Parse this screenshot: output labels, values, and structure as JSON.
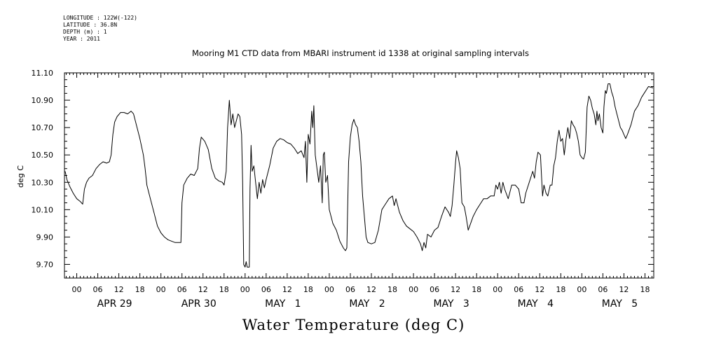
{
  "meta": {
    "longitude": "LONGITUDE : 122W(-122)",
    "latitude": "LATITUDE : 36.8N",
    "depth": "DEPTH (m) : 1",
    "year": "YEAR : 2011"
  },
  "chart_data": {
    "type": "line",
    "title": "Mooring M1 CTD data from MBARI instrument id 1338 at original sampling intervals",
    "ylabel": "deg C",
    "xlabel": "Water Temperature (deg C)",
    "ylim": [
      9.6,
      11.1
    ],
    "y_ticks": [
      "9.70",
      "9.90",
      "10.10",
      "10.30",
      "10.50",
      "10.70",
      "10.90",
      "11.10"
    ],
    "y_tick_values": [
      9.7,
      9.9,
      10.1,
      10.3,
      10.5,
      10.7,
      10.9,
      11.1
    ],
    "x_unit": "hours since APR 29 00",
    "xlim": [
      -3.5,
      164.5
    ],
    "x_hour_ticks": [
      {
        "h": 0,
        "label": "00"
      },
      {
        "h": 6,
        "label": "06"
      },
      {
        "h": 12,
        "label": "12"
      },
      {
        "h": 18,
        "label": "18"
      },
      {
        "h": 24,
        "label": "00"
      },
      {
        "h": 30,
        "label": "06"
      },
      {
        "h": 36,
        "label": "12"
      },
      {
        "h": 42,
        "label": "18"
      },
      {
        "h": 48,
        "label": "00"
      },
      {
        "h": 54,
        "label": "06"
      },
      {
        "h": 60,
        "label": "12"
      },
      {
        "h": 66,
        "label": "18"
      },
      {
        "h": 72,
        "label": "00"
      },
      {
        "h": 78,
        "label": "06"
      },
      {
        "h": 84,
        "label": "12"
      },
      {
        "h": 90,
        "label": "18"
      },
      {
        "h": 96,
        "label": "00"
      },
      {
        "h": 102,
        "label": "06"
      },
      {
        "h": 108,
        "label": "12"
      },
      {
        "h": 114,
        "label": "18"
      },
      {
        "h": 120,
        "label": "00"
      },
      {
        "h": 126,
        "label": "06"
      },
      {
        "h": 132,
        "label": "12"
      },
      {
        "h": 138,
        "label": "18"
      },
      {
        "h": 144,
        "label": "00"
      },
      {
        "h": 150,
        "label": "06"
      },
      {
        "h": 156,
        "label": "12"
      },
      {
        "h": 162,
        "label": "18"
      }
    ],
    "x_day_labels": [
      {
        "h": 12,
        "label": "APR 29"
      },
      {
        "h": 36,
        "label": "APR 30"
      },
      {
        "h": 60,
        "label": "MAY   1"
      },
      {
        "h": 84,
        "label": "MAY   2"
      },
      {
        "h": 108,
        "label": "MAY   3"
      },
      {
        "h": 132,
        "label": "MAY   4"
      },
      {
        "h": 156,
        "label": "MAY   5"
      }
    ],
    "series": [
      {
        "color": "#000000",
        "points": [
          [
            -3.3,
            10.38
          ],
          [
            -2.8,
            10.32
          ],
          [
            -2.0,
            10.27
          ],
          [
            -1.0,
            10.22
          ],
          [
            0.0,
            10.18
          ],
          [
            1.0,
            10.16
          ],
          [
            1.7,
            10.14
          ],
          [
            2.2,
            10.25
          ],
          [
            2.8,
            10.3
          ],
          [
            3.5,
            10.33
          ],
          [
            4.5,
            10.35
          ],
          [
            5.5,
            10.4
          ],
          [
            6.5,
            10.43
          ],
          [
            7.5,
            10.45
          ],
          [
            8.5,
            10.44
          ],
          [
            9.3,
            10.45
          ],
          [
            9.8,
            10.5
          ],
          [
            10.3,
            10.65
          ],
          [
            10.8,
            10.74
          ],
          [
            11.5,
            10.78
          ],
          [
            12.5,
            10.81
          ],
          [
            13.5,
            10.81
          ],
          [
            14.5,
            10.8
          ],
          [
            15.5,
            10.82
          ],
          [
            16.2,
            10.8
          ],
          [
            17.0,
            10.72
          ],
          [
            18.0,
            10.62
          ],
          [
            19.0,
            10.5
          ],
          [
            19.5,
            10.4
          ],
          [
            20.0,
            10.28
          ],
          [
            21.0,
            10.18
          ],
          [
            22.0,
            10.08
          ],
          [
            23.0,
            9.98
          ],
          [
            24.0,
            9.93
          ],
          [
            25.0,
            9.9
          ],
          [
            26.0,
            9.88
          ],
          [
            27.0,
            9.87
          ],
          [
            28.0,
            9.86
          ],
          [
            29.0,
            9.86
          ],
          [
            29.7,
            9.86
          ],
          [
            30.0,
            10.15
          ],
          [
            30.5,
            10.28
          ],
          [
            31.5,
            10.33
          ],
          [
            32.5,
            10.36
          ],
          [
            33.5,
            10.35
          ],
          [
            34.5,
            10.4
          ],
          [
            35.0,
            10.55
          ],
          [
            35.5,
            10.63
          ],
          [
            36.5,
            10.6
          ],
          [
            37.5,
            10.54
          ],
          [
            38.5,
            10.4
          ],
          [
            39.5,
            10.33
          ],
          [
            40.5,
            10.31
          ],
          [
            41.5,
            10.3
          ],
          [
            42.0,
            10.28
          ],
          [
            42.6,
            10.38
          ],
          [
            43.0,
            10.7
          ],
          [
            43.5,
            10.9
          ],
          [
            44.0,
            10.72
          ],
          [
            44.5,
            10.8
          ],
          [
            45.0,
            10.7
          ],
          [
            45.5,
            10.75
          ],
          [
            46.0,
            10.8
          ],
          [
            46.5,
            10.78
          ],
          [
            47.0,
            10.65
          ],
          [
            47.3,
            10.3
          ],
          [
            47.6,
            9.7
          ],
          [
            48.0,
            9.68
          ],
          [
            48.3,
            9.72
          ],
          [
            48.6,
            9.68
          ],
          [
            49.2,
            9.68
          ],
          [
            49.4,
            10.25
          ],
          [
            49.7,
            10.57
          ],
          [
            50.0,
            10.38
          ],
          [
            50.5,
            10.42
          ],
          [
            51.0,
            10.3
          ],
          [
            51.5,
            10.18
          ],
          [
            52.0,
            10.3
          ],
          [
            52.5,
            10.22
          ],
          [
            53.0,
            10.32
          ],
          [
            53.5,
            10.26
          ],
          [
            54.0,
            10.32
          ],
          [
            55.0,
            10.42
          ],
          [
            56.0,
            10.55
          ],
          [
            57.0,
            10.6
          ],
          [
            58.0,
            10.62
          ],
          [
            59.0,
            10.61
          ],
          [
            60.0,
            10.59
          ],
          [
            61.0,
            10.58
          ],
          [
            62.0,
            10.55
          ],
          [
            63.0,
            10.51
          ],
          [
            64.0,
            10.53
          ],
          [
            64.8,
            10.48
          ],
          [
            65.2,
            10.6
          ],
          [
            65.6,
            10.3
          ],
          [
            66.0,
            10.65
          ],
          [
            66.5,
            10.58
          ],
          [
            67.0,
            10.82
          ],
          [
            67.3,
            10.7
          ],
          [
            67.6,
            10.86
          ],
          [
            68.0,
            10.5
          ],
          [
            68.5,
            10.4
          ],
          [
            69.0,
            10.3
          ],
          [
            69.5,
            10.42
          ],
          [
            70.0,
            10.15
          ],
          [
            70.3,
            10.5
          ],
          [
            70.6,
            10.52
          ],
          [
            71.0,
            10.3
          ],
          [
            71.5,
            10.35
          ],
          [
            72.0,
            10.1
          ],
          [
            72.5,
            10.05
          ],
          [
            73.0,
            10.0
          ],
          [
            74.0,
            9.95
          ],
          [
            75.0,
            9.87
          ],
          [
            76.0,
            9.82
          ],
          [
            76.6,
            9.8
          ],
          [
            77.0,
            9.82
          ],
          [
            77.5,
            10.45
          ],
          [
            78.0,
            10.63
          ],
          [
            78.5,
            10.72
          ],
          [
            79.0,
            10.76
          ],
          [
            79.5,
            10.72
          ],
          [
            80.0,
            10.7
          ],
          [
            80.5,
            10.6
          ],
          [
            81.0,
            10.45
          ],
          [
            81.5,
            10.2
          ],
          [
            82.0,
            10.05
          ],
          [
            82.5,
            9.9
          ],
          [
            83.0,
            9.86
          ],
          [
            84.0,
            9.85
          ],
          [
            85.0,
            9.86
          ],
          [
            86.0,
            9.95
          ],
          [
            87.0,
            10.1
          ],
          [
            88.0,
            10.14
          ],
          [
            89.0,
            10.18
          ],
          [
            90.0,
            10.2
          ],
          [
            90.5,
            10.13
          ],
          [
            91.0,
            10.18
          ],
          [
            92.0,
            10.08
          ],
          [
            93.0,
            10.02
          ],
          [
            94.0,
            9.98
          ],
          [
            95.0,
            9.96
          ],
          [
            96.0,
            9.94
          ],
          [
            97.0,
            9.9
          ],
          [
            98.0,
            9.85
          ],
          [
            98.5,
            9.8
          ],
          [
            99.0,
            9.86
          ],
          [
            99.5,
            9.82
          ],
          [
            100.0,
            9.92
          ],
          [
            101.0,
            9.9
          ],
          [
            102.0,
            9.95
          ],
          [
            103.0,
            9.97
          ],
          [
            104.0,
            10.05
          ],
          [
            105.0,
            10.12
          ],
          [
            106.0,
            10.08
          ],
          [
            106.5,
            10.05
          ],
          [
            107.0,
            10.13
          ],
          [
            107.5,
            10.28
          ],
          [
            108.0,
            10.45
          ],
          [
            108.3,
            10.53
          ],
          [
            108.8,
            10.48
          ],
          [
            109.3,
            10.4
          ],
          [
            109.8,
            10.15
          ],
          [
            110.5,
            10.12
          ],
          [
            111.0,
            10.05
          ],
          [
            111.6,
            9.95
          ],
          [
            112.3,
            10.0
          ],
          [
            113.0,
            10.05
          ],
          [
            114.0,
            10.1
          ],
          [
            115.0,
            10.14
          ],
          [
            116.0,
            10.18
          ],
          [
            117.0,
            10.18
          ],
          [
            118.0,
            10.2
          ],
          [
            119.0,
            10.2
          ],
          [
            119.5,
            10.28
          ],
          [
            120.0,
            10.25
          ],
          [
            120.5,
            10.3
          ],
          [
            121.0,
            10.22
          ],
          [
            121.5,
            10.3
          ],
          [
            122.0,
            10.25
          ],
          [
            123.0,
            10.18
          ],
          [
            124.0,
            10.28
          ],
          [
            125.0,
            10.28
          ],
          [
            126.0,
            10.25
          ],
          [
            126.7,
            10.15
          ],
          [
            127.5,
            10.15
          ],
          [
            128.0,
            10.22
          ],
          [
            129.0,
            10.3
          ],
          [
            130.0,
            10.38
          ],
          [
            130.5,
            10.33
          ],
          [
            131.0,
            10.45
          ],
          [
            131.5,
            10.52
          ],
          [
            132.2,
            10.5
          ],
          [
            132.8,
            10.2
          ],
          [
            133.2,
            10.28
          ],
          [
            133.8,
            10.22
          ],
          [
            134.3,
            10.2
          ],
          [
            135.0,
            10.28
          ],
          [
            135.5,
            10.28
          ],
          [
            136.0,
            10.42
          ],
          [
            136.5,
            10.48
          ],
          [
            137.0,
            10.6
          ],
          [
            137.5,
            10.68
          ],
          [
            138.0,
            10.6
          ],
          [
            138.5,
            10.62
          ],
          [
            139.0,
            10.5
          ],
          [
            139.5,
            10.62
          ],
          [
            140.0,
            10.7
          ],
          [
            140.5,
            10.62
          ],
          [
            141.0,
            10.75
          ],
          [
            141.5,
            10.72
          ],
          [
            142.0,
            10.7
          ],
          [
            142.5,
            10.66
          ],
          [
            143.0,
            10.6
          ],
          [
            143.5,
            10.5
          ],
          [
            144.0,
            10.48
          ],
          [
            144.5,
            10.47
          ],
          [
            145.0,
            10.52
          ],
          [
            145.5,
            10.85
          ],
          [
            146.0,
            10.93
          ],
          [
            146.5,
            10.9
          ],
          [
            147.0,
            10.84
          ],
          [
            147.5,
            10.8
          ],
          [
            148.0,
            10.72
          ],
          [
            148.3,
            10.82
          ],
          [
            148.6,
            10.75
          ],
          [
            149.0,
            10.8
          ],
          [
            149.5,
            10.7
          ],
          [
            150.0,
            10.66
          ],
          [
            150.3,
            10.85
          ],
          [
            150.7,
            10.97
          ],
          [
            151.0,
            10.95
          ],
          [
            151.5,
            11.02
          ],
          [
            152.0,
            11.02
          ],
          [
            152.5,
            10.96
          ],
          [
            153.0,
            10.92
          ],
          [
            153.5,
            10.85
          ],
          [
            154.0,
            10.8
          ],
          [
            155.0,
            10.7
          ],
          [
            155.5,
            10.68
          ],
          [
            156.0,
            10.65
          ],
          [
            156.5,
            10.62
          ],
          [
            157.0,
            10.65
          ],
          [
            158.0,
            10.72
          ],
          [
            159.0,
            10.82
          ],
          [
            160.0,
            10.86
          ],
          [
            161.0,
            10.92
          ],
          [
            162.0,
            10.96
          ],
          [
            163.0,
            11.0
          ],
          [
            164.3,
            10.99
          ]
        ]
      }
    ]
  }
}
